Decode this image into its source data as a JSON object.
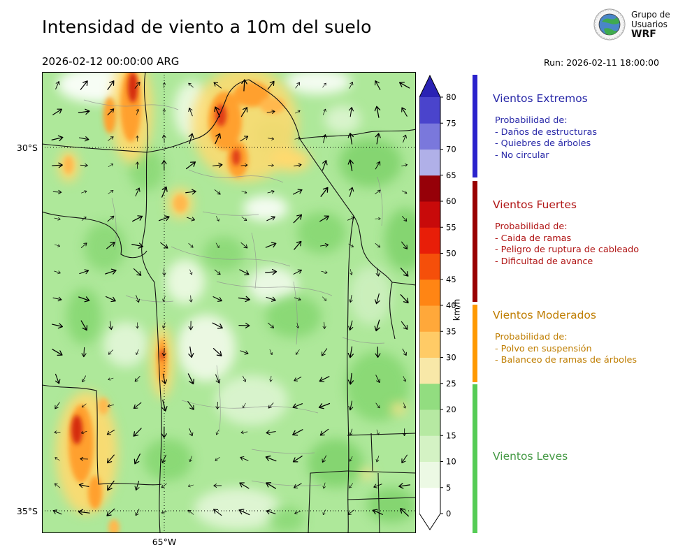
{
  "header": {
    "title": "Intensidad de viento a 10m del suelo",
    "valid_datetime": "2026-02-12 00:00:00 ARG",
    "run_label": "Run: 2026-02-11 18:00:00",
    "logo_line1": "Grupo de",
    "logo_line2": "Usuarios",
    "logo_line3": "WRF"
  },
  "map": {
    "lat_labels": [
      "30°S",
      "35°S"
    ],
    "lon_label": "65°W"
  },
  "colorbar": {
    "unit": "km/h",
    "ticks": [
      "0",
      "5",
      "10",
      "15",
      "20",
      "25",
      "30",
      "35",
      "40",
      "45",
      "50",
      "55",
      "60",
      "65",
      "70",
      "75",
      "80"
    ],
    "segment_colors_bottom_to_top": [
      "#ffffff",
      "#ecf9e4",
      "#d4f2c4",
      "#b6e9a2",
      "#92dd80",
      "#f8e8a8",
      "#ffcb66",
      "#ffa83a",
      "#ff8514",
      "#f54f0a",
      "#e81e08",
      "#c80a0a",
      "#960008",
      "#b0b0e8",
      "#7a78dc",
      "#4a44cc"
    ],
    "over_color": "#2a22b4",
    "under_color": "#ffffff"
  },
  "legend": {
    "categories": [
      {
        "title": "Vientos Extremos",
        "text_color": "#2929a8",
        "bar_color": "#2a22cc",
        "prob_label": "Probabilidad de:",
        "items": [
          "- Daños de estructuras",
          "- Quiebres de árboles",
          "- No circular"
        ]
      },
      {
        "title": "Vientos Fuertes",
        "text_color": "#b01414",
        "bar_color": "#990000",
        "prob_label": "Probabilidad de:",
        "items": [
          "- Caida de ramas",
          "- Peligro de ruptura de cableado",
          "- Dificultad de avance"
        ]
      },
      {
        "title": "Vientos Moderados",
        "text_color": "#bf7d00",
        "bar_color": "#ff9900",
        "prob_label": "Probabilidad de:",
        "items": [
          "- Polvo en suspensión",
          "- Balanceo de ramas de árboles"
        ]
      },
      {
        "title": "Vientos Leves",
        "text_color": "#449944",
        "bar_color": "#55cc55",
        "prob_label": "",
        "items": []
      }
    ]
  }
}
